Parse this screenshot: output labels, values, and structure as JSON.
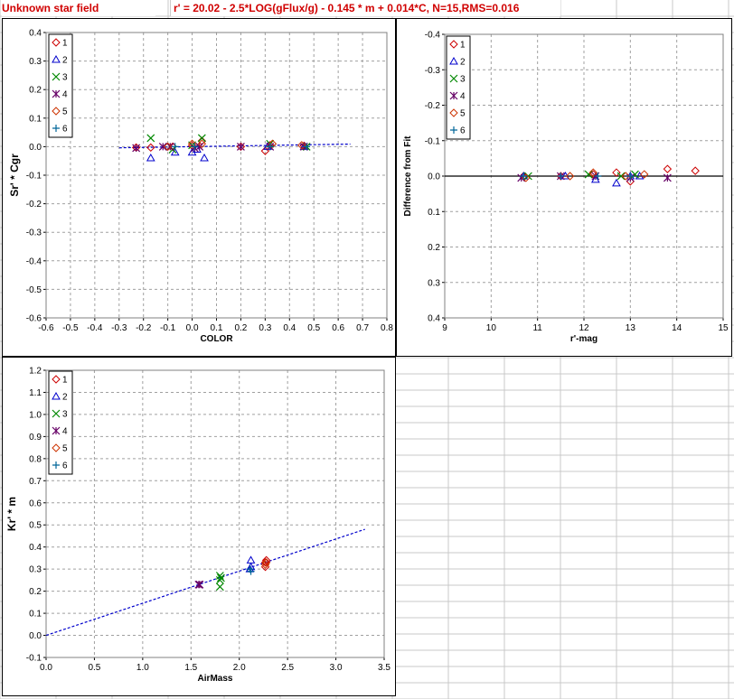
{
  "header": {
    "title": "Unknown star field",
    "formula": "r' = 20.02 - 2.5*LOG(gFlux/g) - 0.145 * m + 0.014*C,  N=15,RMS=0.016"
  },
  "colors": {
    "header_text": "#d00000",
    "series": [
      "#cc0000",
      "#0000cc",
      "#008800",
      "#660066",
      "#cc3300",
      "#006699"
    ],
    "fit_line": "#0000cc"
  },
  "chart_data": [
    {
      "type": "scatter",
      "xlabel": "COLOR",
      "ylabel": "Sr' * Cgr",
      "xlim": [
        -0.6,
        0.8
      ],
      "ylim": [
        -0.6,
        0.4
      ],
      "xticks": [
        -0.6,
        -0.5,
        -0.4,
        -0.3,
        -0.2,
        -0.1,
        0,
        0.1,
        0.2,
        0.3,
        0.4,
        0.5,
        0.6,
        0.7,
        0.8
      ],
      "yticks": [
        0.4,
        0.3,
        0.2,
        0.1,
        0.0,
        -0.1,
        -0.2,
        -0.3,
        -0.4,
        -0.5,
        -0.6
      ],
      "xtick_labels": [
        "-0.6",
        "-0.5",
        "-0.4",
        "-0.3",
        "-0.2",
        "-0.1",
        "0.0",
        "0.1",
        "0.2",
        "0.3",
        "0.4",
        "0.5",
        "0.6",
        "0.7",
        "0.8"
      ],
      "ytick_labels": [
        "0.4",
        "0.3",
        "0.2",
        "0.1",
        "0.0",
        "-0.1",
        "-0.2",
        "-0.3",
        "-0.4",
        "-0.5",
        "-0.6"
      ],
      "grid": true,
      "legend": [
        "1",
        "2",
        "3",
        "4",
        "5",
        "6"
      ],
      "fit_line": {
        "x": [
          -0.3,
          0.65
        ],
        "y": [
          -0.004,
          0.009
        ]
      },
      "series": [
        {
          "name": "1",
          "marker": "diamond",
          "points": [
            [
              -0.23,
              -0.003
            ],
            [
              -0.17,
              -0.003
            ],
            [
              -0.08,
              0.0
            ],
            [
              0.0,
              0.003
            ],
            [
              0.04,
              0.02
            ],
            [
              0.2,
              0.0
            ],
            [
              0.3,
              -0.015
            ],
            [
              0.32,
              0.005
            ],
            [
              0.46,
              0.003
            ]
          ]
        },
        {
          "name": "2",
          "marker": "triangle",
          "points": [
            [
              -0.17,
              -0.04
            ],
            [
              -0.07,
              -0.02
            ],
            [
              0.0,
              -0.02
            ],
            [
              0.02,
              -0.01
            ],
            [
              0.05,
              -0.04
            ],
            [
              0.31,
              0.0
            ],
            [
              0.46,
              0.0
            ]
          ]
        },
        {
          "name": "3",
          "marker": "x",
          "points": [
            [
              -0.17,
              0.03
            ],
            [
              -0.08,
              -0.01
            ],
            [
              0.0,
              0.005
            ],
            [
              0.04,
              0.03
            ],
            [
              0.32,
              0.01
            ],
            [
              0.47,
              0.0
            ]
          ]
        },
        {
          "name": "4",
          "marker": "star",
          "points": [
            [
              -0.23,
              -0.005
            ],
            [
              -0.12,
              0.0
            ],
            [
              -0.09,
              0.0
            ],
            [
              0.01,
              -0.005
            ],
            [
              0.03,
              0.0
            ],
            [
              0.2,
              0.0
            ],
            [
              0.32,
              0.0
            ],
            [
              0.46,
              0.0
            ]
          ]
        },
        {
          "name": "5",
          "marker": "diamond",
          "points": [
            [
              -0.1,
              0.0
            ],
            [
              0.0,
              0.01
            ],
            [
              0.04,
              0.01
            ],
            [
              0.33,
              0.01
            ],
            [
              0.45,
              0.005
            ]
          ]
        },
        {
          "name": "6",
          "marker": "plus",
          "points": [
            [
              -0.07,
              0.0
            ],
            [
              0.01,
              0.0
            ],
            [
              0.32,
              0.0
            ],
            [
              0.47,
              0.0
            ]
          ]
        }
      ]
    },
    {
      "type": "scatter",
      "xlabel": "r'-mag",
      "ylabel": "Difference from Fit",
      "xlim": [
        9,
        15
      ],
      "ylim": [
        0.4,
        -0.4
      ],
      "xticks": [
        9,
        10,
        11,
        12,
        13,
        14,
        15
      ],
      "yticks": [
        -0.4,
        -0.3,
        -0.2,
        -0.1,
        0.0,
        0.1,
        0.2,
        0.3,
        0.4
      ],
      "xtick_labels": [
        "9",
        "10",
        "11",
        "12",
        "13",
        "14",
        "15"
      ],
      "ytick_labels": [
        "-0.4",
        "-0.3",
        "-0.2",
        "-0.1",
        "0.0",
        "0.1",
        "0.2",
        "0.3",
        "0.4"
      ],
      "grid": true,
      "legend": [
        "1",
        "2",
        "3",
        "4",
        "5",
        "6"
      ],
      "zero_line": true,
      "series": [
        {
          "name": "1",
          "marker": "diamond",
          "points": [
            [
              10.7,
              0.0
            ],
            [
              11.5,
              0.0
            ],
            [
              12.2,
              -0.005
            ],
            [
              12.7,
              -0.01
            ],
            [
              13.0,
              0.015
            ],
            [
              13.8,
              -0.02
            ],
            [
              14.4,
              -0.015
            ]
          ]
        },
        {
          "name": "2",
          "marker": "triangle",
          "points": [
            [
              10.7,
              0.0
            ],
            [
              11.6,
              0.0
            ],
            [
              12.25,
              0.01
            ],
            [
              12.7,
              0.02
            ],
            [
              13.0,
              0.0
            ],
            [
              13.2,
              0.0
            ]
          ]
        },
        {
          "name": "3",
          "marker": "x",
          "points": [
            [
              10.8,
              0.0
            ],
            [
              12.1,
              -0.005
            ],
            [
              12.8,
              0.0
            ],
            [
              13.1,
              -0.005
            ]
          ]
        },
        {
          "name": "4",
          "marker": "star",
          "points": [
            [
              10.65,
              0.005
            ],
            [
              11.5,
              0.0
            ],
            [
              12.25,
              0.0
            ],
            [
              13.0,
              0.005
            ],
            [
              13.8,
              0.005
            ]
          ]
        },
        {
          "name": "5",
          "marker": "diamond",
          "points": [
            [
              10.75,
              0.005
            ],
            [
              11.7,
              0.0
            ],
            [
              12.2,
              -0.01
            ],
            [
              12.9,
              0.0
            ],
            [
              13.3,
              -0.005
            ]
          ]
        },
        {
          "name": "6",
          "marker": "plus",
          "points": [
            [
              10.7,
              0.0
            ],
            [
              11.5,
              0.0
            ],
            [
              12.3,
              0.0
            ],
            [
              13.0,
              0.0
            ]
          ]
        }
      ]
    },
    {
      "type": "scatter",
      "xlabel": "AirMass",
      "ylabel": "Kr' * m",
      "xlim": [
        0,
        3.5
      ],
      "ylim": [
        -0.1,
        1.2
      ],
      "xticks": [
        0,
        0.5,
        1,
        1.5,
        2,
        2.5,
        3,
        3.5
      ],
      "yticks": [
        1.2,
        1.1,
        1.0,
        0.9,
        0.8,
        0.7,
        0.6,
        0.5,
        0.4,
        0.3,
        0.2,
        0.1,
        0.0,
        -0.1
      ],
      "xtick_labels": [
        "0.0",
        "0.5",
        "1.0",
        "1.5",
        "2.0",
        "2.5",
        "3.0",
        "3.5"
      ],
      "ytick_labels": [
        "1.2",
        "1.1",
        "1.0",
        "0.9",
        "0.8",
        "0.7",
        "0.6",
        "0.5",
        "0.4",
        "0.3",
        "0.2",
        "0.1",
        "0.0",
        "-0.1"
      ],
      "grid": true,
      "legend": [
        "1",
        "2",
        "3",
        "4",
        "5",
        "6"
      ],
      "fit_line": {
        "x": [
          0,
          3.3
        ],
        "y": [
          0,
          0.48
        ]
      },
      "series": [
        {
          "name": "1",
          "marker": "diamond",
          "points": [
            [
              2.27,
              0.33
            ],
            [
              2.27,
              0.31
            ],
            [
              2.28,
              0.34
            ]
          ]
        },
        {
          "name": "2",
          "marker": "triangle",
          "points": [
            [
              2.12,
              0.34
            ],
            [
              2.12,
              0.31
            ],
            [
              2.11,
              0.3
            ]
          ]
        },
        {
          "name": "3",
          "marker": "x",
          "points": [
            [
              1.8,
              0.27
            ],
            [
              1.8,
              0.25
            ],
            [
              1.8,
              0.22
            ],
            [
              1.81,
              0.26
            ]
          ]
        },
        {
          "name": "4",
          "marker": "star",
          "points": [
            [
              1.58,
              0.23
            ],
            [
              1.59,
              0.23
            ]
          ]
        },
        {
          "name": "5",
          "marker": "diamond",
          "points": [
            [
              2.27,
              0.32
            ],
            [
              2.28,
              0.33
            ]
          ]
        },
        {
          "name": "6",
          "marker": "plus",
          "points": [
            [
              2.11,
              0.3
            ],
            [
              2.12,
              0.29
            ]
          ]
        }
      ]
    }
  ]
}
